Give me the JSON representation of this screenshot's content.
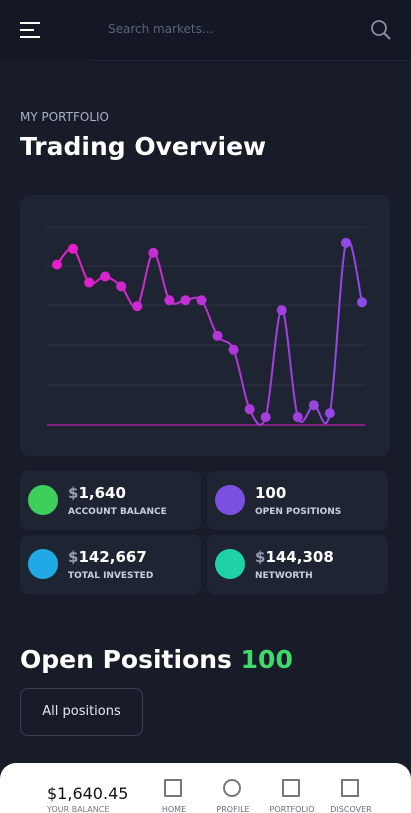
{
  "header": {
    "search_placeholder": "Search markets..."
  },
  "overline": "MY PORTFOLIO",
  "title": "Trading Overview",
  "chart_data": {
    "type": "line",
    "values": [
      81,
      89,
      72,
      75,
      70,
      60,
      87,
      63,
      63,
      63,
      45,
      38,
      8,
      4,
      58,
      4,
      10,
      6,
      92,
      62
    ],
    "ylim": [
      0,
      100
    ],
    "colors": [
      "#e81cc9",
      "#8b4be6"
    ]
  },
  "stats": [
    {
      "prefix": "$",
      "value": "1,640",
      "label": "ACCOUNT BALANCE"
    },
    {
      "value": "100",
      "label": "OPEN POSITIONS"
    },
    {
      "prefix": "$",
      "value": "142,667",
      "label": "TOTAL INVESTED"
    },
    {
      "prefix": "$",
      "value": "144,308",
      "label": "NETWORTH"
    }
  ],
  "positions": {
    "heading": "Open Positions",
    "count": "100",
    "button": "All positions"
  },
  "nav": {
    "balance": "$1,640.45",
    "balance_label": "YOUR BALANCE",
    "items": [
      "HOME",
      "PROFILE",
      "PORTFOLIO",
      "DISCOVER"
    ]
  }
}
